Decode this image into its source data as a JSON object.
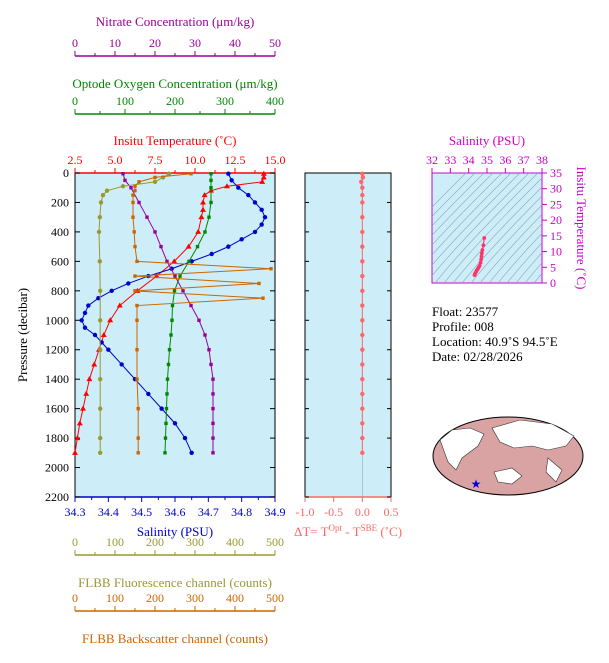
{
  "colors": {
    "nitrate": "#990099",
    "oxygen": "#008800",
    "temperature": "#ff0000",
    "salinity": "#0000cc",
    "fluorescence": "#999933",
    "backscatter": "#cc6600",
    "delta": "#ff6666",
    "ts_axis": "#cc00cc",
    "panel_bg": "#cdeef8"
  },
  "info": {
    "float": "Float:  23577",
    "profile": "Profile:  008",
    "location": "Location:  40.9˚S  94.5˚E",
    "date": "Date:  02/28/2026"
  },
  "chart_data": [
    {
      "type": "line",
      "panel": "main-profile",
      "ylabel": "Pressure (decibar)",
      "ylim": [
        2200,
        0
      ],
      "yticks": [
        0,
        200,
        400,
        600,
        800,
        1000,
        1200,
        1400,
        1600,
        1800,
        2000,
        2200
      ],
      "axes": {
        "nitrate": {
          "label": "Nitrate Concentration (μm/kg)",
          "range": [
            0,
            50
          ],
          "ticks": [
            0,
            10,
            20,
            30,
            40,
            50
          ]
        },
        "oxygen": {
          "label": "Optode Oxygen Concentration (μm/kg)",
          "range": [
            0,
            400
          ],
          "ticks": [
            0,
            100,
            200,
            300,
            400
          ]
        },
        "temperature": {
          "label": "Insitu Temperature (˚C)",
          "range": [
            2.5,
            15.0
          ],
          "ticks": [
            "2.5",
            "5.0",
            "7.5",
            "10.0",
            "12.5",
            "15.0"
          ]
        },
        "salinity": {
          "label": "Salinity (PSU)",
          "range": [
            34.3,
            34.9
          ],
          "ticks": [
            "34.3",
            "34.4",
            "34.5",
            "34.6",
            "34.7",
            "34.8",
            "34.9"
          ]
        },
        "fluorescence": {
          "label": "FLBB Fluorescence channel (counts)",
          "range": [
            0,
            500
          ],
          "ticks": [
            0,
            100,
            200,
            300,
            400,
            500
          ]
        },
        "backscatter": {
          "label": "FLBB Backscatter channel (counts)",
          "range": [
            0,
            500
          ],
          "ticks": [
            0,
            100,
            200,
            300,
            400,
            500
          ]
        }
      },
      "series": [
        {
          "key": "temperature",
          "pressure": [
            5,
            30,
            60,
            90,
            120,
            150,
            200,
            250,
            300,
            400,
            500,
            600,
            700,
            800,
            900,
            1000,
            1100,
            1200,
            1300,
            1400,
            1500,
            1600,
            1700,
            1800,
            1900
          ],
          "values": [
            14.3,
            14.3,
            14.2,
            12.0,
            11.0,
            10.6,
            10.5,
            10.5,
            10.4,
            10.2,
            9.6,
            8.7,
            7.6,
            6.4,
            5.3,
            4.7,
            4.3,
            4.0,
            3.7,
            3.4,
            3.2,
            3.0,
            2.8,
            2.65,
            2.5
          ]
        },
        {
          "key": "salinity",
          "pressure": [
            5,
            50,
            100,
            150,
            200,
            250,
            300,
            350,
            400,
            450,
            500,
            550,
            600,
            650,
            700,
            750,
            800,
            850,
            900,
            950,
            1000,
            1050,
            1100,
            1150,
            1200,
            1300,
            1400,
            1500,
            1600,
            1700,
            1800,
            1900
          ],
          "values": [
            34.76,
            34.77,
            34.79,
            34.82,
            34.84,
            34.86,
            34.87,
            34.86,
            34.84,
            34.8,
            34.76,
            34.71,
            34.65,
            34.59,
            34.52,
            34.46,
            34.41,
            34.37,
            34.34,
            34.33,
            34.32,
            34.33,
            34.36,
            34.38,
            34.4,
            34.44,
            34.48,
            34.52,
            34.56,
            34.6,
            34.63,
            34.65
          ]
        },
        {
          "key": "oxygen",
          "pressure": [
            5,
            50,
            100,
            200,
            300,
            400,
            500,
            600,
            700,
            800,
            900,
            1000,
            1100,
            1200,
            1300,
            1400,
            1500,
            1600,
            1700,
            1800,
            1900
          ],
          "values": [
            272,
            272,
            272,
            272,
            268,
            260,
            245,
            228,
            210,
            199,
            195,
            194,
            192,
            189,
            187,
            185,
            184,
            183,
            182,
            181,
            180
          ]
        },
        {
          "key": "nitrate",
          "pressure": [
            5,
            50,
            100,
            200,
            300,
            400,
            500,
            600,
            700,
            800,
            900,
            1000,
            1100,
            1200,
            1300,
            1400,
            1500,
            1600,
            1700,
            1800,
            1900
          ],
          "values": [
            12,
            12.5,
            14,
            16,
            18,
            20,
            21.5,
            23,
            25,
            27,
            29,
            31,
            32.5,
            33.5,
            34,
            34.5,
            34.5,
            34.5,
            34.5,
            34.5,
            34.5
          ]
        },
        {
          "key": "fluorescence",
          "pressure": [
            5,
            30,
            60,
            90,
            120,
            150,
            200,
            300,
            400,
            600,
            800,
            1000,
            1200,
            1400,
            1600,
            1800,
            1900
          ],
          "values": [
            235,
            220,
            200,
            120,
            80,
            70,
            65,
            62,
            60,
            62,
            63,
            63,
            63,
            63,
            63,
            63,
            63
          ]
        },
        {
          "key": "backscatter",
          "pressure": [
            5,
            30,
            60,
            90,
            120,
            150,
            200,
            300,
            400,
            500,
            600,
            650,
            700,
            750,
            800,
            850,
            900,
            1000,
            1200,
            1400,
            1600,
            1800,
            1900
          ],
          "values": [
            290,
            200,
            160,
            150,
            150,
            145,
            145,
            145,
            148,
            150,
            155,
            490,
            150,
            460,
            150,
            470,
            155,
            155,
            155,
            155,
            158,
            158,
            158
          ]
        }
      ]
    },
    {
      "type": "line",
      "panel": "delta-t",
      "xlabel": "ΔT= T^Opt - T^SBE (˚C)",
      "xlim": [
        -1.0,
        0.5
      ],
      "xticks": [
        "-1.0",
        "-0.5",
        "0.0",
        "0.5"
      ],
      "ylim": [
        2200,
        0
      ],
      "series": [
        {
          "key": "delta",
          "pressure": [
            5,
            30,
            60,
            100,
            150,
            200,
            300,
            400,
            500,
            600,
            700,
            800,
            900,
            1000,
            1100,
            1200,
            1300,
            1400,
            1500,
            1600,
            1700,
            1800,
            1900
          ],
          "values": [
            0.0,
            0.01,
            -0.02,
            0.0,
            0.0,
            0.0,
            0.0,
            0.0,
            0.0,
            0.0,
            0.0,
            0.0,
            0.0,
            0.0,
            0.0,
            0.0,
            0.0,
            0.0,
            0.0,
            0.0,
            0.0,
            0.0,
            0.0
          ]
        }
      ]
    },
    {
      "type": "scatter",
      "panel": "ts-diagram",
      "xlabel": "Salinity (PSU)",
      "ylabel": "Insitu Temperature (˚C)",
      "xlim": [
        32,
        38
      ],
      "ylim": [
        0,
        35
      ],
      "xticks": [
        32,
        33,
        34,
        35,
        36,
        37,
        38
      ],
      "yticks": [
        0,
        5,
        10,
        15,
        20,
        25,
        30,
        35
      ],
      "series": [
        {
          "key": "ts",
          "x": [
            34.32,
            34.35,
            34.4,
            34.44,
            34.5,
            34.55,
            34.6,
            34.65,
            34.68,
            34.7,
            34.72,
            34.75,
            34.8,
            34.85
          ],
          "y": [
            2.5,
            3.0,
            3.5,
            4.0,
            4.5,
            5.0,
            5.5,
            6.5,
            7.5,
            8.5,
            9.5,
            10.5,
            12.0,
            14.3
          ]
        }
      ]
    }
  ]
}
